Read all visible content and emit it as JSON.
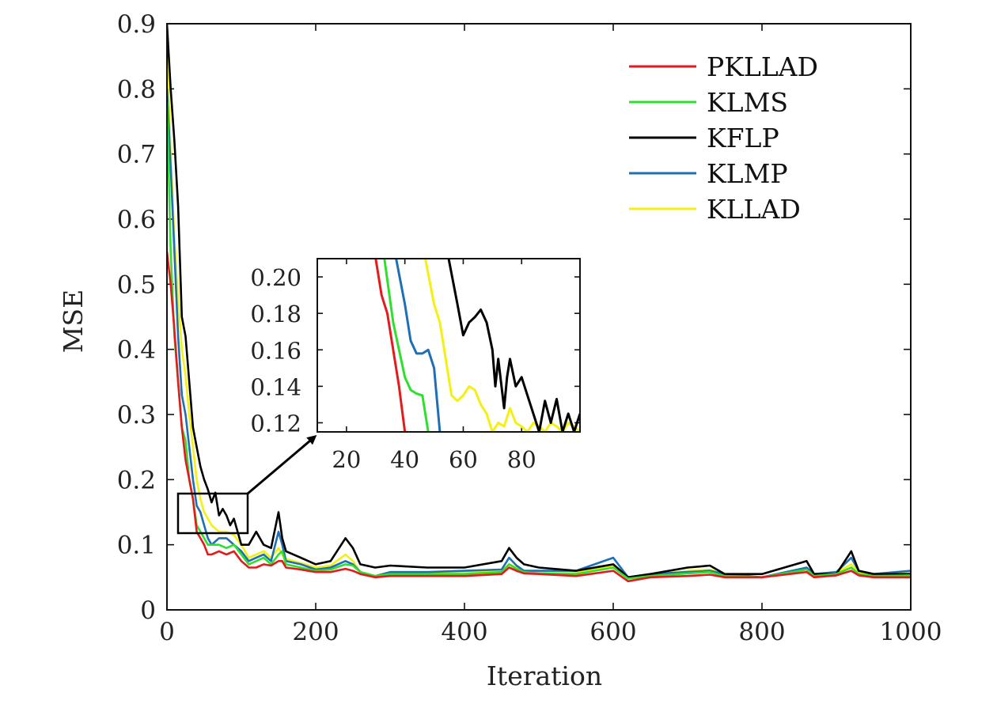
{
  "chart_data": [
    {
      "panel": "main",
      "type": "line",
      "xlabel": "Iteration",
      "ylabel": "MSE",
      "xlim": [
        0,
        1000
      ],
      "ylim": [
        0,
        0.9
      ],
      "xticks": [
        0,
        200,
        400,
        600,
        800,
        1000
      ],
      "xtick_labels": [
        "0",
        "200",
        "400",
        "600",
        "800",
        "1000"
      ],
      "yticks": [
        0,
        0.1,
        0.2,
        0.3,
        0.4,
        0.5,
        0.6,
        0.7,
        0.8,
        0.9
      ],
      "ytick_labels": [
        "0",
        "0.1",
        "0.2",
        "0.3",
        "0.4",
        "0.5",
        "0.6",
        "0.7",
        "0.8",
        "0.9"
      ],
      "grid": false,
      "legend": "top-right",
      "series": [
        {
          "name": "PKLLAD",
          "color": "#e41a1c",
          "x": [
            0,
            5,
            10,
            15,
            20,
            25,
            30,
            35,
            40,
            45,
            50,
            55,
            60,
            70,
            80,
            90,
            100,
            110,
            120,
            130,
            140,
            150,
            155,
            160,
            180,
            200,
            220,
            240,
            250,
            260,
            280,
            300,
            350,
            400,
            450,
            460,
            470,
            480,
            500,
            550,
            600,
            620,
            650,
            700,
            730,
            750,
            800,
            860,
            870,
            900,
            920,
            930,
            950,
            1000
          ],
          "y": [
            0.55,
            0.5,
            0.43,
            0.35,
            0.28,
            0.23,
            0.2,
            0.17,
            0.12,
            0.11,
            0.1,
            0.085,
            0.085,
            0.09,
            0.085,
            0.09,
            0.075,
            0.065,
            0.065,
            0.07,
            0.068,
            0.075,
            0.075,
            0.065,
            0.062,
            0.058,
            0.058,
            0.063,
            0.06,
            0.055,
            0.05,
            0.052,
            0.052,
            0.052,
            0.055,
            0.065,
            0.06,
            0.056,
            0.055,
            0.052,
            0.06,
            0.044,
            0.05,
            0.052,
            0.054,
            0.05,
            0.05,
            0.058,
            0.05,
            0.053,
            0.06,
            0.053,
            0.05,
            0.05
          ]
        },
        {
          "name": "KLMS",
          "color": "#2ee02e",
          "x": [
            0,
            5,
            10,
            15,
            20,
            25,
            30,
            35,
            40,
            45,
            50,
            55,
            60,
            70,
            80,
            90,
            100,
            110,
            120,
            130,
            140,
            150,
            155,
            160,
            180,
            200,
            220,
            240,
            250,
            260,
            280,
            300,
            350,
            400,
            450,
            460,
            470,
            480,
            500,
            550,
            600,
            620,
            650,
            700,
            730,
            750,
            800,
            860,
            870,
            900,
            920,
            930,
            950,
            1000
          ],
          "y": [
            0.78,
            0.55,
            0.42,
            0.35,
            0.28,
            0.26,
            0.2,
            0.17,
            0.13,
            0.12,
            0.11,
            0.1,
            0.1,
            0.1,
            0.095,
            0.1,
            0.085,
            0.07,
            0.075,
            0.08,
            0.07,
            0.085,
            0.09,
            0.07,
            0.065,
            0.06,
            0.062,
            0.07,
            0.068,
            0.058,
            0.052,
            0.055,
            0.055,
            0.055,
            0.058,
            0.07,
            0.063,
            0.058,
            0.056,
            0.055,
            0.065,
            0.048,
            0.052,
            0.056,
            0.058,
            0.052,
            0.05,
            0.062,
            0.052,
            0.055,
            0.065,
            0.055,
            0.052,
            0.053
          ]
        },
        {
          "name": "KFLP",
          "color": "#000000",
          "x": [
            0,
            5,
            10,
            15,
            20,
            25,
            30,
            35,
            40,
            45,
            50,
            55,
            60,
            65,
            70,
            75,
            80,
            85,
            90,
            95,
            100,
            110,
            120,
            130,
            140,
            150,
            155,
            160,
            180,
            200,
            220,
            240,
            250,
            260,
            280,
            300,
            350,
            400,
            450,
            460,
            470,
            480,
            500,
            550,
            600,
            620,
            650,
            700,
            730,
            750,
            800,
            860,
            870,
            900,
            920,
            930,
            950,
            1000
          ],
          "y": [
            0.9,
            0.8,
            0.72,
            0.62,
            0.45,
            0.42,
            0.35,
            0.28,
            0.25,
            0.22,
            0.2,
            0.185,
            0.165,
            0.18,
            0.145,
            0.155,
            0.145,
            0.13,
            0.14,
            0.12,
            0.1,
            0.1,
            0.12,
            0.1,
            0.095,
            0.15,
            0.11,
            0.09,
            0.08,
            0.07,
            0.075,
            0.11,
            0.095,
            0.07,
            0.065,
            0.068,
            0.065,
            0.065,
            0.075,
            0.095,
            0.08,
            0.07,
            0.065,
            0.06,
            0.07,
            0.05,
            0.055,
            0.065,
            0.068,
            0.055,
            0.055,
            0.075,
            0.055,
            0.055,
            0.09,
            0.06,
            0.055,
            0.055
          ]
        },
        {
          "name": "KLMP",
          "color": "#1f6fb4",
          "x": [
            0,
            5,
            10,
            15,
            20,
            25,
            30,
            35,
            40,
            45,
            50,
            55,
            60,
            70,
            80,
            90,
            100,
            110,
            120,
            130,
            140,
            150,
            155,
            160,
            180,
            200,
            220,
            240,
            250,
            260,
            280,
            300,
            350,
            400,
            450,
            460,
            470,
            480,
            500,
            550,
            600,
            620,
            650,
            700,
            730,
            750,
            800,
            860,
            870,
            900,
            920,
            930,
            950,
            1000
          ],
          "y": [
            0.8,
            0.68,
            0.55,
            0.42,
            0.33,
            0.3,
            0.25,
            0.2,
            0.16,
            0.15,
            0.13,
            0.11,
            0.1,
            0.11,
            0.11,
            0.1,
            0.09,
            0.075,
            0.08,
            0.085,
            0.075,
            0.12,
            0.1,
            0.075,
            0.07,
            0.062,
            0.065,
            0.075,
            0.07,
            0.058,
            0.052,
            0.058,
            0.058,
            0.06,
            0.062,
            0.08,
            0.068,
            0.06,
            0.06,
            0.06,
            0.08,
            0.05,
            0.055,
            0.058,
            0.06,
            0.055,
            0.05,
            0.065,
            0.055,
            0.058,
            0.08,
            0.06,
            0.055,
            0.06
          ]
        },
        {
          "name": "KLLAD",
          "color": "#f5f010",
          "x": [
            0,
            5,
            10,
            15,
            20,
            25,
            30,
            35,
            40,
            45,
            50,
            55,
            60,
            70,
            80,
            90,
            100,
            110,
            120,
            130,
            140,
            150,
            155,
            160,
            180,
            200,
            220,
            240,
            250,
            260,
            280,
            300,
            350,
            400,
            450,
            460,
            470,
            480,
            500,
            550,
            600,
            620,
            650,
            700,
            730,
            750,
            800,
            860,
            870,
            900,
            920,
            930,
            950,
            1000
          ],
          "y": [
            0.88,
            0.7,
            0.57,
            0.48,
            0.4,
            0.36,
            0.3,
            0.25,
            0.2,
            0.17,
            0.15,
            0.14,
            0.13,
            0.12,
            0.12,
            0.115,
            0.1,
            0.08,
            0.085,
            0.09,
            0.08,
            0.095,
            0.085,
            0.078,
            0.072,
            0.065,
            0.068,
            0.085,
            0.075,
            0.058,
            0.052,
            0.058,
            0.058,
            0.058,
            0.06,
            0.07,
            0.065,
            0.058,
            0.058,
            0.058,
            0.068,
            0.05,
            0.053,
            0.06,
            0.062,
            0.055,
            0.05,
            0.063,
            0.055,
            0.057,
            0.07,
            0.058,
            0.053,
            0.058
          ]
        }
      ]
    },
    {
      "panel": "inset",
      "type": "line",
      "xlim": [
        10,
        100
      ],
      "ylim": [
        0.115,
        0.21
      ],
      "xticks": [
        20,
        40,
        60,
        80
      ],
      "xtick_labels": [
        "20",
        "40",
        "60",
        "80"
      ],
      "yticks": [
        0.12,
        0.14,
        0.16,
        0.18,
        0.2
      ],
      "ytick_labels": [
        "0.12",
        "0.14",
        "0.16",
        "0.18",
        "0.20"
      ],
      "grid": false,
      "series": [
        {
          "name": "PKLLAD",
          "color": "#e41a1c",
          "x": [
            30,
            32,
            34,
            36,
            38,
            40
          ],
          "y": [
            0.21,
            0.19,
            0.18,
            0.16,
            0.14,
            0.115
          ]
        },
        {
          "name": "KLMS",
          "color": "#2ee02e",
          "x": [
            33,
            36,
            38,
            40,
            42,
            44,
            46,
            48
          ],
          "y": [
            0.21,
            0.175,
            0.16,
            0.145,
            0.138,
            0.136,
            0.135,
            0.115
          ]
        },
        {
          "name": "KLMP",
          "color": "#1f6fb4",
          "x": [
            37,
            40,
            42,
            44,
            46,
            48,
            50,
            52
          ],
          "y": [
            0.21,
            0.185,
            0.165,
            0.158,
            0.158,
            0.16,
            0.15,
            0.115
          ]
        },
        {
          "name": "KLLAD",
          "color": "#f5f010",
          "x": [
            47,
            50,
            52,
            54,
            56,
            58,
            60,
            62,
            64,
            66,
            68,
            70,
            72,
            74,
            76,
            78,
            80,
            82,
            84,
            86,
            88,
            90,
            92,
            94,
            96,
            98,
            100
          ],
          "y": [
            0.21,
            0.185,
            0.175,
            0.155,
            0.135,
            0.132,
            0.135,
            0.14,
            0.138,
            0.13,
            0.125,
            0.115,
            0.12,
            0.118,
            0.128,
            0.12,
            0.118,
            0.115,
            0.12,
            0.118,
            0.115,
            0.12,
            0.118,
            0.115,
            0.12,
            0.118,
            0.115
          ]
        },
        {
          "name": "KFLP",
          "color": "#000000",
          "x": [
            55,
            58,
            60,
            62,
            64,
            66,
            68,
            70,
            71,
            72,
            74,
            75,
            76,
            78,
            80,
            82,
            84,
            86,
            88,
            90,
            92,
            94,
            96,
            98,
            100
          ],
          "y": [
            0.21,
            0.185,
            0.168,
            0.175,
            0.178,
            0.182,
            0.175,
            0.16,
            0.14,
            0.155,
            0.128,
            0.145,
            0.155,
            0.14,
            0.145,
            0.135,
            0.125,
            0.115,
            0.132,
            0.12,
            0.133,
            0.115,
            0.125,
            0.115,
            0.125
          ]
        }
      ]
    }
  ]
}
